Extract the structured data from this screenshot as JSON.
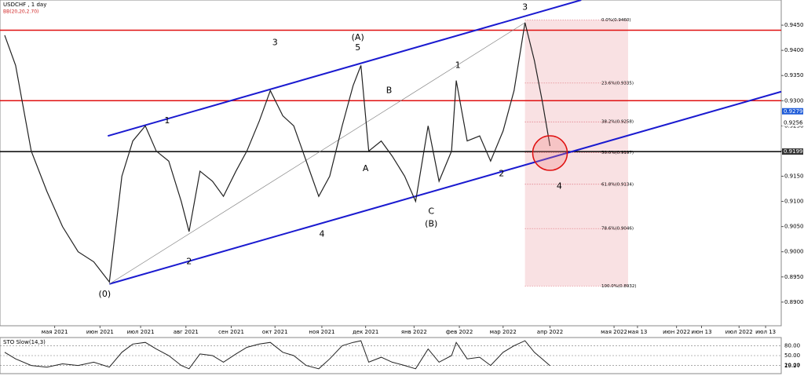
{
  "chart_data": {
    "type": "line",
    "title": "USDCHF , 1 day",
    "subtitle": "BB(20,20,2.70)",
    "color": "#222222",
    "x": [
      -7,
      0,
      10,
      20,
      30,
      40,
      50,
      60,
      68,
      75,
      83,
      90,
      98,
      106,
      111,
      118,
      126,
      133,
      141,
      148,
      156,
      163,
      171,
      178,
      186,
      194,
      201,
      209,
      216,
      221,
      226,
      234,
      241,
      249,
      256,
      264,
      271,
      279,
      282,
      289,
      297,
      304,
      312,
      319,
      326,
      332,
      337,
      342
    ],
    "values": [
      0.943,
      0.937,
      0.92,
      0.912,
      0.905,
      0.9,
      0.898,
      0.894,
      0.915,
      0.922,
      0.925,
      0.92,
      0.918,
      0.91,
      0.904,
      0.916,
      0.914,
      0.911,
      0.916,
      0.92,
      0.926,
      0.932,
      0.927,
      0.925,
      0.918,
      0.911,
      0.915,
      0.925,
      0.933,
      0.937,
      0.92,
      0.922,
      0.919,
      0.915,
      0.91,
      0.925,
      0.914,
      0.92,
      0.934,
      0.922,
      0.923,
      0.918,
      0.924,
      0.932,
      0.9455,
      0.938,
      0.93,
      0.921
    ],
    "xlim": [
      -10,
      490
    ],
    "ylim": [
      0.8853,
      0.95
    ],
    "xticks": [
      {
        "value": 25,
        "label": "мая 2021"
      },
      {
        "value": 54,
        "label": "июн 2021"
      },
      {
        "value": 80,
        "label": "июл 2021"
      },
      {
        "value": 109,
        "label": "авг 2021"
      },
      {
        "value": 138,
        "label": "сен 2021"
      },
      {
        "value": 166,
        "label": "окт 2021"
      },
      {
        "value": 196,
        "label": "ноя 2021"
      },
      {
        "value": 224,
        "label": "дек 2021"
      },
      {
        "value": 255,
        "label": "янв 2022"
      },
      {
        "value": 284,
        "label": "фев 2022"
      },
      {
        "value": 312,
        "label": "мар 2022"
      },
      {
        "value": 342,
        "label": "апр 2022"
      },
      {
        "value": 383,
        "label": "мая 2022"
      },
      {
        "value": 398,
        "label": "мая 13"
      },
      {
        "value": 423,
        "label": "июн 2022"
      },
      {
        "value": 439,
        "label": "июн 13"
      },
      {
        "value": 463,
        "label": "июл 2022"
      },
      {
        "value": 480,
        "label": "июл 13"
      }
    ],
    "yticks": [
      {
        "value": 0.945,
        "label": "0.9450"
      },
      {
        "value": 0.94,
        "label": "0.9400"
      },
      {
        "value": 0.935,
        "label": "0.9350"
      },
      {
        "value": 0.93,
        "label": "0.9300"
      },
      {
        "value": 0.925,
        "label": "0.9250"
      },
      {
        "value": 0.92,
        "label": "0.9200"
      },
      {
        "value": 0.915,
        "label": "0.9150"
      },
      {
        "value": 0.91,
        "label": "0.9100"
      },
      {
        "value": 0.905,
        "label": "0.9050"
      },
      {
        "value": 0.9,
        "label": "0.9000"
      },
      {
        "value": 0.895,
        "label": "0.8950"
      },
      {
        "value": 0.89,
        "label": "0.8900"
      }
    ],
    "levels": [
      {
        "value": 0.944,
        "color": "#e01010"
      },
      {
        "value": 0.93,
        "color": "#e01010"
      },
      {
        "value": 0.9199,
        "color": "#000000"
      }
    ],
    "price_markers": [
      {
        "value": 0.9279,
        "color": "#1e5bd8"
      },
      {
        "value": 0.9256,
        "color": "#ffffff"
      },
      {
        "value": 0.9199,
        "color": "#333333"
      }
    ],
    "trendlines": [
      {
        "x": [
          60,
          490
        ],
        "y": [
          0.8936,
          0.9318
        ],
        "color": "#1a1ad0"
      },
      {
        "x": [
          59,
          362
        ],
        "y": [
          0.923,
          0.95
        ],
        "color": "#1a1ad0"
      },
      {
        "x": [
          60,
          326
        ],
        "y": [
          0.8936,
          0.9455
        ],
        "color": "#808080"
      }
    ],
    "fib": {
      "x": [
        326,
        392
      ],
      "levels": [
        {
          "value": 0.946,
          "label": "0.0%(0.9460)"
        },
        {
          "value": 0.9335,
          "label": "23.6%(0.9335)"
        },
        {
          "value": 0.9258,
          "label": "38.2%(0.9258)"
        },
        {
          "value": 0.9197,
          "label": "50.0%(0.9197)"
        },
        {
          "value": 0.9134,
          "label": "61.8%(0.9134)"
        },
        {
          "value": 0.9046,
          "label": "78.6%(0.9046)"
        },
        {
          "value": 0.8932,
          "label": "100.0%(0.8932)"
        }
      ]
    },
    "highlight": {
      "x": 342,
      "y": 0.9196
    },
    "annotations": [
      {
        "text": "3",
        "x": 326,
        "y": 0.9485
      },
      {
        "text": "(A)",
        "x": 219,
        "y": 0.9425
      },
      {
        "text": "5",
        "x": 219,
        "y": 0.9405
      },
      {
        "text": "3",
        "x": 166,
        "y": 0.9415
      },
      {
        "text": "1",
        "x": 97,
        "y": 0.926
      },
      {
        "text": "B",
        "x": 239,
        "y": 0.932
      },
      {
        "text": "A",
        "x": 224,
        "y": 0.9165
      },
      {
        "text": "1",
        "x": 283,
        "y": 0.937
      },
      {
        "text": "C",
        "x": 266,
        "y": 0.908
      },
      {
        "text": "(B)",
        "x": 266,
        "y": 0.9055
      },
      {
        "text": "2",
        "x": 111,
        "y": 0.898
      },
      {
        "text": "4",
        "x": 196,
        "y": 0.9035
      },
      {
        "text": "2",
        "x": 311,
        "y": 0.9155
      },
      {
        "text": "4",
        "x": 348,
        "y": 0.913
      },
      {
        "text": "(0)",
        "x": 57,
        "y": 0.8915
      }
    ],
    "indicator": {
      "title": "STO Slow(14,3)",
      "color": "#222222",
      "ylim": [
        0,
        100
      ],
      "yticks": [
        {
          "value": 80,
          "label": "80.00"
        },
        {
          "value": 50,
          "label": "50.00"
        },
        {
          "value": 20,
          "label": "20.00"
        }
      ],
      "values": [
        60,
        40,
        20,
        15,
        25,
        20,
        30,
        15,
        60,
        85,
        90,
        70,
        50,
        20,
        10,
        55,
        50,
        30,
        55,
        75,
        85,
        90,
        60,
        50,
        20,
        10,
        40,
        80,
        90,
        95,
        30,
        45,
        30,
        20,
        10,
        70,
        30,
        50,
        90,
        40,
        45,
        20,
        60,
        80,
        95,
        60,
        40,
        19.27
      ]
    }
  }
}
